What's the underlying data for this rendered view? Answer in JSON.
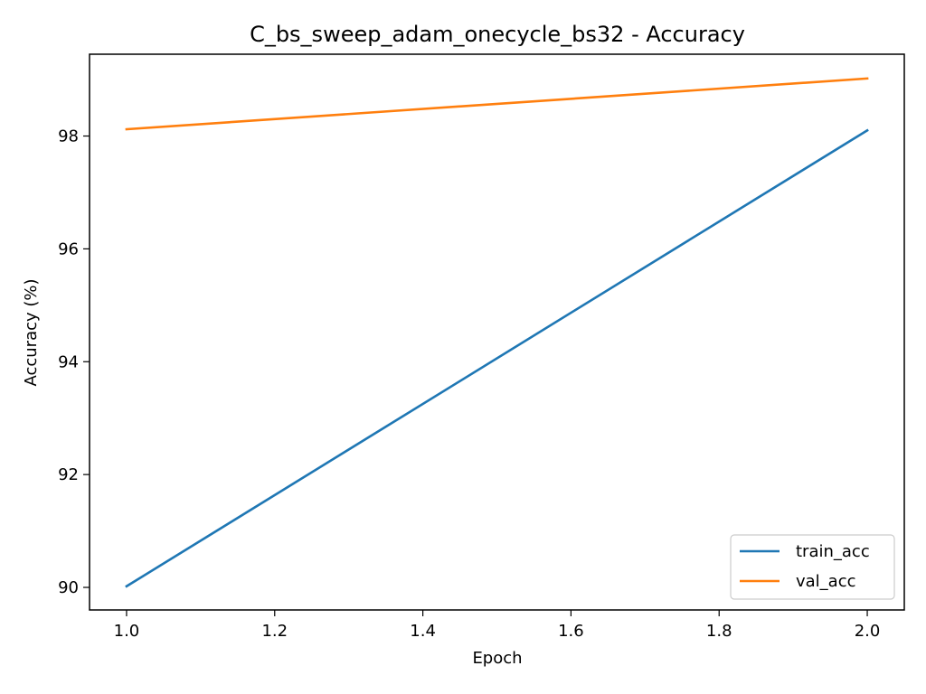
{
  "chart_data": {
    "type": "line",
    "title": "C_bs_sweep_adam_onecycle_bs32 - Accuracy",
    "xlabel": "Epoch",
    "ylabel": "Accuracy (%)",
    "x": [
      1.0,
      2.0
    ],
    "xlim": [
      0.95,
      2.05
    ],
    "ylim": [
      89.6,
      99.45
    ],
    "xticks": [
      1.0,
      1.2,
      1.4,
      1.6,
      1.8,
      2.0
    ],
    "xtick_labels": [
      "1.0",
      "1.2",
      "1.4",
      "1.6",
      "1.8",
      "2.0"
    ],
    "yticks": [
      90,
      92,
      94,
      96,
      98
    ],
    "ytick_labels": [
      "90",
      "92",
      "94",
      "96",
      "98"
    ],
    "grid": false,
    "legend_position": "lower-right",
    "series": [
      {
        "name": "train_acc",
        "color": "#1f77b4",
        "values": [
          90.02,
          98.1
        ]
      },
      {
        "name": "val_acc",
        "color": "#ff7f0e",
        "values": [
          98.12,
          99.02
        ]
      }
    ]
  }
}
